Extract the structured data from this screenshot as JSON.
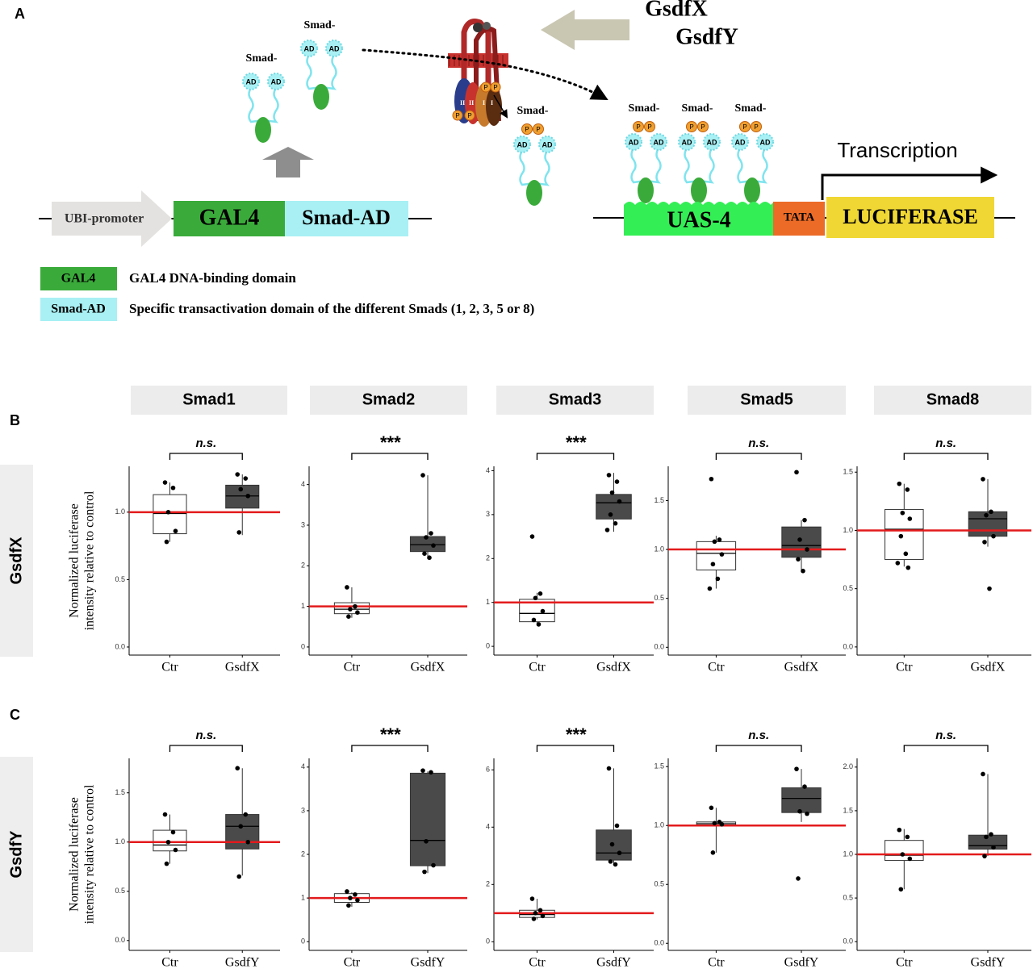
{
  "panels": [
    "A",
    "B",
    "C"
  ],
  "diagram": {
    "ligands": [
      "GsdfX",
      "GsdfY"
    ],
    "molecules": [
      {
        "label": "Smad-",
        "domains": [
          "AD",
          "AD"
        ]
      },
      {
        "label": "Smad-",
        "domains": [
          "AD",
          "AD"
        ]
      },
      {
        "label": "Smad-",
        "phospho": [
          "P",
          "P"
        ],
        "domains": [
          "AD",
          "AD"
        ]
      },
      {
        "label": "Smad-",
        "phospho": [
          "P",
          "P"
        ],
        "domains": [
          "AD",
          "AD"
        ]
      },
      {
        "label": "Smad-",
        "phospho": [
          "P",
          "P"
        ],
        "domains": [
          "AD",
          "AD"
        ]
      },
      {
        "label": "Smad-",
        "phospho": [
          "P",
          "P"
        ],
        "domains": [
          "AD",
          "AD"
        ]
      }
    ],
    "receptor_labels": [
      "II",
      "II",
      "I",
      "I"
    ],
    "receptor_phospho": [
      "P",
      "P",
      "P",
      "P"
    ],
    "promoter": "UBI-promoter",
    "gal4": "GAL4",
    "smad_ad": "Smad-AD",
    "uas": "UAS-4",
    "tata": "TATA",
    "reporter": "LUCIFERASE",
    "transcription": "Transcription",
    "legend": [
      {
        "key": "GAL4",
        "color": "#3aab3a",
        "text": "GAL4 DNA-binding domain"
      },
      {
        "key": "Smad-AD",
        "color": "#a8f0f4",
        "text": "Specific transactivation domain of the different Smads (1, 2, 3, 5 or 8)"
      }
    ]
  },
  "row_labels": [
    "GsdfX",
    "GsdfY"
  ],
  "chart_data": [
    {
      "type": "box",
      "title": "Smad1",
      "ylabel": [
        "Normalized luciferase",
        "intensity relative to control"
      ],
      "significance": "n.s.",
      "categories": [
        "Ctr",
        "GsdfX"
      ],
      "ylim": [
        -0.06,
        1.34
      ],
      "yticks": [
        {
          "value": 0,
          "label": "0.0"
        },
        {
          "value": 0.5,
          "label": "0.5"
        },
        {
          "value": 1,
          "label": "1.0"
        }
      ],
      "reference_line": 1,
      "reference_color": "#e31a1c",
      "boxes": [
        {
          "color": "#ffffff",
          "whisker_low": 0.78,
          "q1": 0.84,
          "median": 0.99,
          "q3": 1.13,
          "whisker_high": 1.22,
          "points": [
            1.22,
            1.18,
            1.0,
            0.86,
            0.78
          ]
        },
        {
          "color": "#4a4a4a",
          "whisker_low": 0.83,
          "q1": 1.03,
          "median": 1.12,
          "q3": 1.2,
          "whisker_high": 1.28,
          "points": [
            1.28,
            1.25,
            1.17,
            1.12,
            0.85
          ]
        }
      ]
    },
    {
      "type": "box",
      "title": "Smad2",
      "significance": "***",
      "categories": [
        "Ctr",
        "GsdfX"
      ],
      "ylim": [
        -0.2,
        4.45
      ],
      "yticks": [
        0,
        1,
        2,
        3,
        4
      ],
      "reference_line": 1,
      "reference_color": "#e31a1c",
      "boxes": [
        {
          "color": "#ffffff",
          "whisker_low": 0.72,
          "q1": 0.82,
          "median": 0.93,
          "q3": 1.09,
          "whisker_high": 1.47,
          "points": [
            1.47,
            1.0,
            0.93,
            0.85,
            0.75
          ]
        },
        {
          "color": "#4a4a4a",
          "whisker_low": 2.17,
          "q1": 2.35,
          "median": 2.52,
          "q3": 2.72,
          "whisker_high": 4.23,
          "points": [
            4.23,
            2.8,
            2.7,
            2.5,
            2.3,
            2.2
          ]
        }
      ]
    },
    {
      "type": "box",
      "title": "Smad3",
      "significance": "***",
      "categories": [
        "Ctr",
        "GsdfX"
      ],
      "ylim": [
        -0.2,
        4.1
      ],
      "yticks": [
        0,
        1,
        2,
        3,
        4
      ],
      "reference_line": 1,
      "reference_color": "#e31a1c",
      "boxes": [
        {
          "color": "#ffffff",
          "whisker_low": 0.47,
          "q1": 0.56,
          "median": 0.75,
          "q3": 1.07,
          "whisker_high": 1.22,
          "points": [
            2.5,
            1.2,
            1.1,
            0.8,
            0.6,
            0.5
          ]
        },
        {
          "color": "#4a4a4a",
          "whisker_low": 2.61,
          "q1": 2.9,
          "median": 3.27,
          "q3": 3.46,
          "whisker_high": 3.95,
          "points": [
            3.9,
            3.75,
            3.5,
            3.3,
            3.0,
            2.8,
            2.65
          ]
        }
      ]
    },
    {
      "type": "box",
      "title": "Smad5",
      "significance": "n.s.",
      "categories": [
        "Ctr",
        "GsdfX"
      ],
      "ylim": [
        -0.08,
        1.85
      ],
      "yticks": [
        {
          "value": 0,
          "label": "0.0"
        },
        {
          "value": 0.5,
          "label": "0.5"
        },
        {
          "value": 1,
          "label": "1.0"
        },
        {
          "value": 1.5,
          "label": "1.5"
        }
      ],
      "reference_line": 1,
      "reference_color": "#e31a1c",
      "boxes": [
        {
          "color": "#ffffff",
          "whisker_low": 0.6,
          "q1": 0.79,
          "median": 0.96,
          "q3": 1.08,
          "whisker_high": 1.14,
          "points": [
            1.72,
            1.1,
            1.08,
            0.95,
            0.85,
            0.7,
            0.6
          ]
        },
        {
          "color": "#4a4a4a",
          "whisker_low": 0.77,
          "q1": 0.92,
          "median": 1.04,
          "q3": 1.23,
          "whisker_high": 1.3,
          "points": [
            1.79,
            1.3,
            1.1,
            1.0,
            0.9,
            0.78
          ]
        }
      ]
    },
    {
      "type": "box",
      "title": "Smad8",
      "significance": "n.s.",
      "categories": [
        "Ctr",
        "GsdfX"
      ],
      "ylim": [
        -0.07,
        1.55
      ],
      "yticks": [
        {
          "value": 0,
          "label": "0.0"
        },
        {
          "value": 0.5,
          "label": "0.5"
        },
        {
          "value": 1,
          "label": "1.0"
        },
        {
          "value": 1.5,
          "label": "1.5"
        }
      ],
      "reference_line": 1,
      "reference_color": "#e31a1c",
      "boxes": [
        {
          "color": "#ffffff",
          "whisker_low": 0.69,
          "q1": 0.75,
          "median": 1.01,
          "q3": 1.18,
          "whisker_high": 1.4,
          "points": [
            1.4,
            1.35,
            1.15,
            1.1,
            0.95,
            0.8,
            0.72,
            0.68
          ]
        },
        {
          "color": "#4a4a4a",
          "whisker_low": 0.86,
          "q1": 0.95,
          "median": 1.1,
          "q3": 1.16,
          "whisker_high": 1.44,
          "points": [
            1.44,
            1.16,
            1.13,
            0.95,
            0.9,
            0.5
          ]
        }
      ]
    },
    {
      "type": "box",
      "ylabel": [
        "Normalized luciferase",
        "intensity relative to control"
      ],
      "significance": "n.s.",
      "categories": [
        "Ctr",
        "GsdfY"
      ],
      "ylim": [
        -0.1,
        1.85
      ],
      "yticks": [
        {
          "value": 0,
          "label": "0.0"
        },
        {
          "value": 0.5,
          "label": "0.5"
        },
        {
          "value": 1,
          "label": "1.0"
        },
        {
          "value": 1.5,
          "label": "1.5"
        }
      ],
      "reference_line": 1,
      "reference_color": "#e31a1c",
      "boxes": [
        {
          "color": "#ffffff",
          "whisker_low": 0.78,
          "q1": 0.91,
          "median": 0.97,
          "q3": 1.12,
          "whisker_high": 1.28,
          "points": [
            1.28,
            1.1,
            1.0,
            0.92,
            0.78
          ]
        },
        {
          "color": "#4a4a4a",
          "whisker_low": 0.66,
          "q1": 0.93,
          "median": 1.16,
          "q3": 1.28,
          "whisker_high": 1.75,
          "points": [
            1.75,
            1.28,
            1.16,
            1.0,
            0.65
          ]
        }
      ]
    },
    {
      "type": "box",
      "significance": "***",
      "categories": [
        "Ctr",
        "GsdfY"
      ],
      "ylim": [
        -0.2,
        4.2
      ],
      "yticks": [
        0,
        1,
        2,
        3,
        4
      ],
      "reference_line": 1,
      "reference_color": "#e31a1c",
      "boxes": [
        {
          "color": "#ffffff",
          "whisker_low": 0.8,
          "q1": 0.9,
          "median": 1.0,
          "q3": 1.1,
          "whisker_high": 1.13,
          "points": [
            1.15,
            1.08,
            1.0,
            0.95,
            0.83
          ]
        },
        {
          "color": "#4a4a4a",
          "whisker_low": 1.57,
          "q1": 1.74,
          "median": 2.32,
          "q3": 3.86,
          "whisker_high": 3.9,
          "points": [
            3.92,
            3.88,
            2.3,
            1.75,
            1.6
          ]
        }
      ]
    },
    {
      "type": "box",
      "significance": "***",
      "categories": [
        "Ctr",
        "GsdfY"
      ],
      "ylim": [
        -0.3,
        6.4
      ],
      "yticks": [
        0,
        2,
        4,
        6
      ],
      "reference_line": 1,
      "reference_color": "#e31a1c",
      "boxes": [
        {
          "color": "#ffffff",
          "whisker_low": 0.78,
          "q1": 0.85,
          "median": 0.95,
          "q3": 1.1,
          "whisker_high": 1.5,
          "points": [
            1.5,
            1.1,
            1.0,
            0.9,
            0.8
          ]
        },
        {
          "color": "#4a4a4a",
          "whisker_low": 2.68,
          "q1": 2.85,
          "median": 3.1,
          "q3": 3.9,
          "whisker_high": 6.05,
          "points": [
            6.05,
            4.05,
            3.4,
            3.1,
            2.8,
            2.7
          ]
        }
      ]
    },
    {
      "type": "box",
      "significance": "n.s.",
      "categories": [
        "Ctr",
        "GsdfY"
      ],
      "ylim": [
        -0.06,
        1.57
      ],
      "yticks": [
        {
          "value": 0,
          "label": "0.0"
        },
        {
          "value": 0.5,
          "label": "0.5"
        },
        {
          "value": 1,
          "label": "1.0"
        },
        {
          "value": 1.5,
          "label": "1.5"
        }
      ],
      "reference_line": 1,
      "reference_color": "#e31a1c",
      "boxes": [
        {
          "color": "#ffffff",
          "whisker_low": 0.77,
          "q1": 1.0,
          "median": 1.015,
          "q3": 1.03,
          "whisker_high": 1.15,
          "points": [
            1.15,
            1.03,
            1.02,
            1.01,
            0.77
          ]
        },
        {
          "color": "#4a4a4a",
          "whisker_low": 1.03,
          "q1": 1.11,
          "median": 1.23,
          "q3": 1.32,
          "whisker_high": 1.48,
          "points": [
            1.48,
            1.33,
            1.12,
            1.1,
            0.55
          ]
        }
      ]
    },
    {
      "type": "box",
      "significance": "n.s.",
      "categories": [
        "Ctr",
        "GsdfY"
      ],
      "ylim": [
        -0.1,
        2.1
      ],
      "yticks": [
        {
          "value": 0,
          "label": "0.0"
        },
        {
          "value": 0.5,
          "label": "0.5"
        },
        {
          "value": 1,
          "label": "1.0"
        },
        {
          "value": 1.5,
          "label": "1.5"
        },
        {
          "value": 2,
          "label": "2.0"
        }
      ],
      "reference_line": 1,
      "reference_color": "#e31a1c",
      "boxes": [
        {
          "color": "#ffffff",
          "whisker_low": 0.6,
          "q1": 0.93,
          "median": 0.99,
          "q3": 1.16,
          "whisker_high": 1.29,
          "points": [
            1.28,
            1.2,
            1.0,
            0.95,
            0.6
          ]
        },
        {
          "color": "#4a4a4a",
          "whisker_low": 0.98,
          "q1": 1.06,
          "median": 1.1,
          "q3": 1.22,
          "whisker_high": 1.92,
          "points": [
            1.92,
            1.23,
            1.2,
            1.08,
            0.98
          ]
        }
      ]
    }
  ]
}
